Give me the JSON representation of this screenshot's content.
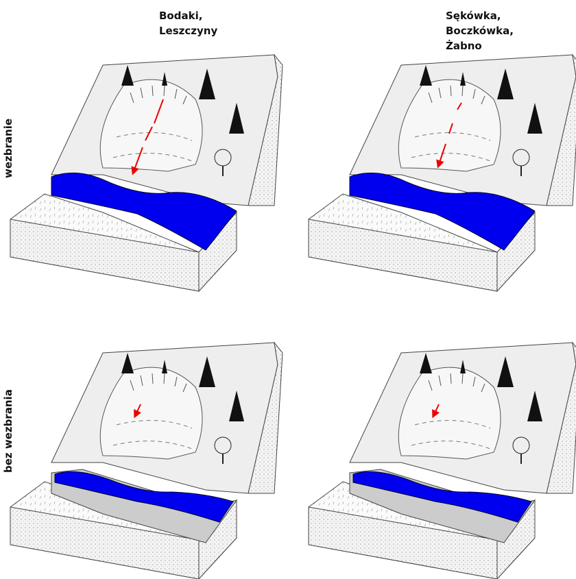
{
  "columns": [
    {
      "lines": [
        "Bodaki,",
        "Leszczyny"
      ]
    },
    {
      "lines": [
        "Sękówka,",
        "Boczkówka,",
        "Żabno"
      ]
    }
  ],
  "rows": [
    "wezbranie",
    "bez wezbrania"
  ]
}
